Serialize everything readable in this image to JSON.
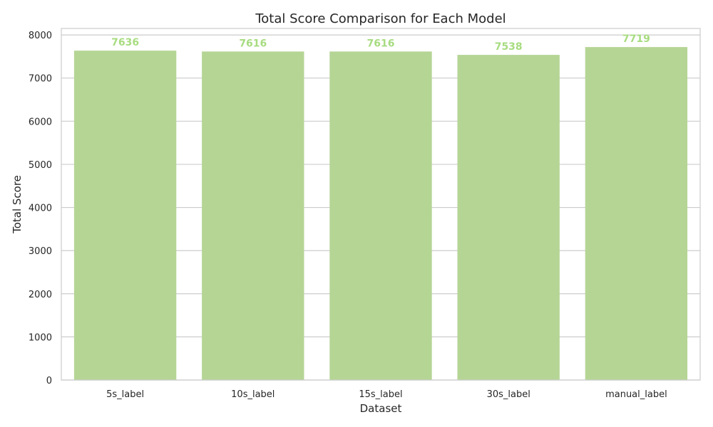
{
  "chart_data": {
    "type": "bar",
    "title": "Total Score Comparison for Each Model",
    "xlabel": "Dataset",
    "ylabel": "Total Score",
    "categories": [
      "5s_label",
      "10s_label",
      "15s_label",
      "30s_label",
      "manual_label"
    ],
    "values": [
      7636,
      7616,
      7616,
      7538,
      7719
    ],
    "value_labels": [
      "7636",
      "7616",
      "7616",
      "7538",
      "7719"
    ],
    "ylim": [
      0,
      8150
    ],
    "yticks": [
      0,
      1000,
      2000,
      3000,
      4000,
      5000,
      6000,
      7000,
      8000
    ],
    "ytick_labels": [
      "0",
      "1000",
      "2000",
      "3000",
      "4000",
      "5000",
      "6000",
      "7000",
      "8000"
    ],
    "grid": true,
    "colors": {
      "bar": "#b5d595",
      "value_label": "#a8dc80",
      "grid": "#cccccc",
      "axes": "#cccccc",
      "text": "#262626"
    }
  }
}
